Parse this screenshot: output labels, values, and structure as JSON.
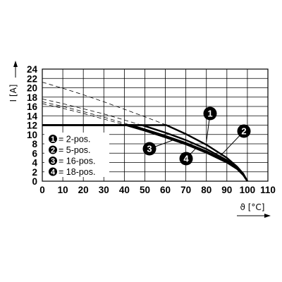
{
  "chart_data": {
    "type": "line",
    "ylabel": "I [A]",
    "xlabel": "ϑ [°C]",
    "xlim": [
      0,
      110
    ],
    "ylim": [
      0,
      24
    ],
    "xticks": [
      0,
      10,
      20,
      30,
      40,
      50,
      60,
      70,
      80,
      90,
      100,
      110
    ],
    "yticks": [
      0,
      2,
      4,
      6,
      8,
      10,
      12,
      14,
      16,
      18,
      20,
      22,
      24
    ],
    "grid": true,
    "legend": [
      {
        "marker": "1",
        "label": "= 2-pos."
      },
      {
        "marker": "2",
        "label": "= 5-pos."
      },
      {
        "marker": "3",
        "label": "= 16-pos."
      },
      {
        "marker": "4",
        "label": "= 18-pos."
      }
    ],
    "limit_current": 12,
    "series": [
      {
        "marker": "1",
        "limit": {
          "x": [
            0,
            45
          ],
          "y": [
            12,
            12
          ]
        },
        "derating": {
          "x": [
            0,
            10,
            20,
            30,
            40,
            50,
            60,
            70,
            80,
            90,
            95,
            98,
            100
          ],
          "y": [
            21.2,
            19.9,
            18.5,
            17.0,
            15.4,
            13.8,
            12.1,
            10.1,
            7.8,
            5.0,
            3.1,
            1.6,
            0
          ]
        }
      },
      {
        "marker": "2",
        "limit": {
          "x": [
            0,
            48
          ],
          "y": [
            12,
            12
          ]
        },
        "derating": {
          "x": [
            0,
            10,
            20,
            30,
            40,
            50,
            60,
            70,
            80,
            90,
            95,
            98,
            100
          ],
          "y": [
            17.6,
            16.6,
            15.5,
            14.4,
            13.1,
            11.8,
            10.4,
            8.8,
            6.9,
            4.5,
            2.9,
            1.5,
            0
          ]
        }
      },
      {
        "marker": "3",
        "limit": {
          "x": [
            0,
            45
          ],
          "y": [
            12,
            12
          ]
        },
        "derating": {
          "x": [
            0,
            10,
            20,
            30,
            40,
            50,
            60,
            70,
            80,
            90,
            95,
            98,
            100
          ],
          "y": [
            17.0,
            16.0,
            14.9,
            13.7,
            12.4,
            11.1,
            9.7,
            8.2,
            6.4,
            4.2,
            2.7,
            1.4,
            0
          ]
        }
      },
      {
        "marker": "4",
        "limit": {
          "x": [
            0,
            44
          ],
          "y": [
            12,
            12
          ]
        },
        "derating": {
          "x": [
            0,
            10,
            20,
            30,
            40,
            50,
            60,
            70,
            80,
            90,
            95,
            98,
            100
          ],
          "y": [
            16.6,
            15.6,
            14.5,
            13.3,
            12.1,
            10.8,
            9.4,
            7.9,
            6.1,
            4.0,
            2.6,
            1.3,
            0
          ]
        }
      }
    ],
    "callouts": [
      {
        "marker": "1",
        "target": [
          80,
          8.4
        ]
      },
      {
        "marker": "2",
        "target": [
          87,
          5.5
        ]
      },
      {
        "marker": "3",
        "target": [
          65,
          9.0
        ]
      },
      {
        "marker": "4",
        "target": [
          75,
          7.1
        ]
      }
    ]
  }
}
